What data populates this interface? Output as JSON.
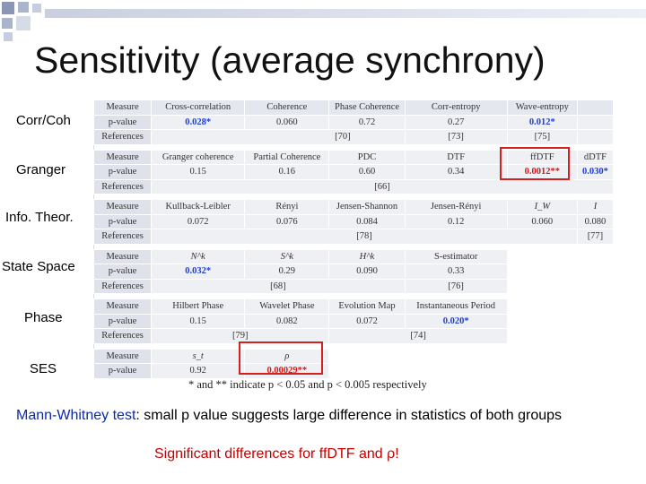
{
  "title": "Sensitivity (average synchrony)",
  "row_labels": [
    "Corr/Coh",
    "Granger",
    "Info. Theor.",
    "State Space",
    "Phase",
    "SES"
  ],
  "table": {
    "r1": {
      "c0": "Measure",
      "c1": "Cross-correlation",
      "c2": "Coherence",
      "c3": "Phase Coherence",
      "c4": "Corr-entropy",
      "c5": "Wave-entropy"
    },
    "r2": {
      "c0": "p-value",
      "c1": "0.028*",
      "c2": "0.060",
      "c3": "0.72",
      "c4": "0.27",
      "c5": "0.012*"
    },
    "r3": {
      "c0": "References",
      "refA": "[70]",
      "refB": "[73]",
      "refC": "[75]"
    },
    "r4": {
      "c0": "Measure",
      "c1": "Granger coherence",
      "c2": "Partial Coherence",
      "c3": "PDC",
      "c4": "DTF",
      "c5": "ffDTF",
      "c6": "dDTF"
    },
    "r5": {
      "c0": "p-value",
      "c1": "0.15",
      "c2": "0.16",
      "c3": "0.60",
      "c4": "0.34",
      "c5": "0.0012**",
      "c6": "0.030*"
    },
    "r6": {
      "c0": "References",
      "refA": "[66]"
    },
    "r7": {
      "c0": "Measure",
      "c1": "Kullback-Leibler",
      "c2": "Rényi",
      "c3": "Jensen-Shannon",
      "c4": "Jensen-Rényi",
      "c5": "I_W",
      "c6": "I"
    },
    "r8": {
      "c0": "p-value",
      "c1": "0.072",
      "c2": "0.076",
      "c3": "0.084",
      "c4": "0.12",
      "c5": "0.060",
      "c6": "0.080"
    },
    "r9": {
      "c0": "References",
      "refA": "[78]",
      "refB": "[77]"
    },
    "r10": {
      "c0": "Measure",
      "c1": "N^k",
      "c2": "S^k",
      "c3": "H^k",
      "c4": "S-estimator"
    },
    "r11": {
      "c0": "p-value",
      "c1": "0.032*",
      "c2": "0.29",
      "c3": "0.090",
      "c4": "0.33"
    },
    "r12": {
      "c0": "References",
      "refA": "[68]",
      "refB": "[76]"
    },
    "r13": {
      "c0": "Measure",
      "c1": "Hilbert Phase",
      "c2": "Wavelet Phase",
      "c3": "Evolution Map",
      "c4": "Instantaneous Period"
    },
    "r14": {
      "c0": "p-value",
      "c1": "0.15",
      "c2": "0.082",
      "c3": "0.072",
      "c4": "0.020*"
    },
    "r15": {
      "c0": "References",
      "refA": "[79]",
      "refB": "[74]"
    },
    "r16": {
      "c0": "Measure",
      "c1": "s_t",
      "c2": "ρ"
    },
    "r17": {
      "c0": "p-value",
      "c1": "0.92",
      "c2": "0.00029**"
    }
  },
  "note": "* and ** indicate p < 0.05 and p < 0.005 respectively",
  "bottom_line": {
    "lead": "Mann-Whitney test",
    "rest": ": small p value suggests large difference in statistics of both groups"
  },
  "conclusion": "Significant differences for ffDTF and ρ!",
  "colors": {
    "accent_blue": "#1f3fd0",
    "highlight_red": "#d42020",
    "conclusion_red": "#c00000"
  }
}
